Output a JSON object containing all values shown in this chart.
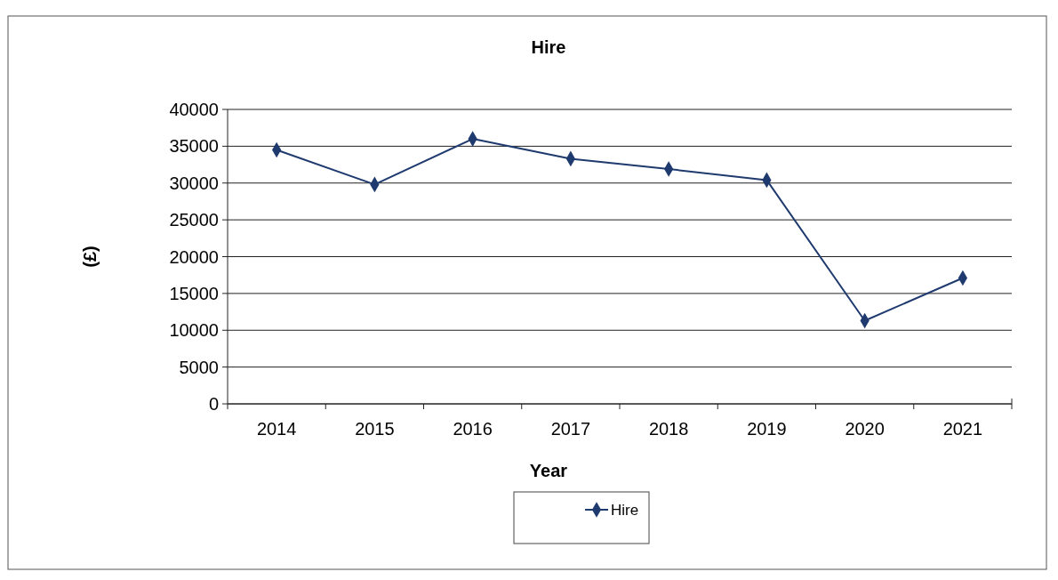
{
  "chart_data": {
    "type": "line",
    "title": "Hire",
    "xlabel": "Year",
    "ylabel": "(£)",
    "categories": [
      "2014",
      "2015",
      "2016",
      "2017",
      "2018",
      "2019",
      "2020",
      "2021"
    ],
    "series": [
      {
        "name": "Hire",
        "color": "#1f3a6e",
        "values": [
          34500,
          29800,
          36000,
          33300,
          31900,
          30400,
          11300,
          17100
        ]
      }
    ],
    "ylim": [
      0,
      40000
    ],
    "yticks": [
      0,
      5000,
      10000,
      15000,
      20000,
      25000,
      30000,
      35000,
      40000
    ],
    "grid": "y",
    "legend": "bottom",
    "marker": "diamond",
    "line_style": "solid"
  }
}
